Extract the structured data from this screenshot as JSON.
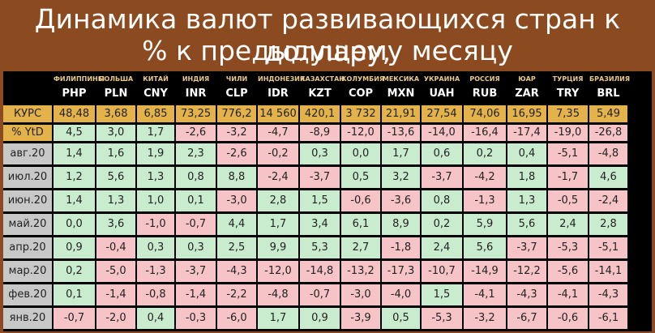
{
  "title_line1": "Динамика валют развивающихся стран к доллару,",
  "title_line2": "% к предыдущему месяцу",
  "chart_data": {
    "type": "table",
    "title": "Динамика валют развивающихся стран к доллару, % к предыдущему месяцу",
    "countries": [
      "ФИЛИППИНЫ",
      "ПОЛЬША",
      "КИТАЙ",
      "ИНДИЯ",
      "ЧИЛИ",
      "ИНДОНЕЗИЯ",
      "КАЗАХСТАН",
      "КОЛУМБИЯ",
      "МЕКСИКА",
      "УКРАИНА",
      "РОССИЯ",
      "ЮАР",
      "ТУРЦИЯ",
      "БРАЗИЛИЯ"
    ],
    "codes": [
      "PHP",
      "PLN",
      "CNY",
      "INR",
      "CLP",
      "IDR",
      "KZT",
      "COP",
      "MXN",
      "UAH",
      "RUB",
      "ZAR",
      "TRY",
      "BRL"
    ],
    "rate_label": "КУРС",
    "rates": [
      "48,48",
      "3,68",
      "6,85",
      "73,25",
      "776,2",
      "14 560",
      "420,1",
      "3 732",
      "21,91",
      "27,54",
      "74,06",
      "16,95",
      "7,35",
      "5,49"
    ],
    "ytd_label": "% YtD",
    "ytd": [
      4.5,
      3.0,
      1.7,
      -2.6,
      -3.2,
      -4.7,
      -8.9,
      -12.0,
      -13.6,
      -14.0,
      -16.4,
      -17.4,
      -19.0,
      -26.8
    ],
    "rows": [
      {
        "label": "авг.20",
        "values": [
          1.4,
          1.6,
          1.9,
          2.3,
          -2.6,
          -0.2,
          0.3,
          0.0,
          1.7,
          0.6,
          0.2,
          0.4,
          -5.1,
          -4.8
        ]
      },
      {
        "label": "июл.20",
        "values": [
          1.2,
          5.6,
          1.3,
          0.8,
          8.8,
          -2.4,
          -3.7,
          0.5,
          3.2,
          -3.7,
          -4.2,
          1.8,
          -1.7,
          4.6
        ]
      },
      {
        "label": "июн.20",
        "values": [
          1.4,
          1.3,
          1.0,
          0.1,
          -3.0,
          2.8,
          1.5,
          -0.6,
          -3.6,
          0.8,
          -1.3,
          1.3,
          -0.5,
          -2.4
        ]
      },
      {
        "label": "май.20",
        "values": [
          0.0,
          3.6,
          -1.0,
          -0.7,
          4.4,
          1.7,
          3.4,
          6.1,
          8.9,
          0.2,
          5.9,
          5.6,
          2.4,
          2.8
        ]
      },
      {
        "label": "апр.20",
        "values": [
          0.9,
          -0.4,
          0.3,
          0.3,
          2.5,
          9.9,
          5.3,
          2.7,
          -1.8,
          2.4,
          5.6,
          -3.7,
          -5.3,
          -5.1
        ]
      },
      {
        "label": "мар.20",
        "values": [
          0.2,
          -5.0,
          -1.3,
          -3.7,
          -4.3,
          -12.0,
          -14.8,
          -13.2,
          -17.3,
          -10.7,
          -14.9,
          -12.2,
          -5.6,
          -14.1
        ]
      },
      {
        "label": "фев.20",
        "values": [
          0.1,
          -1.4,
          -0.8,
          -1.4,
          -2.2,
          -4.8,
          -0.7,
          -3.0,
          -4.0,
          1.5,
          -4.1,
          -4.3,
          -4.1,
          -4.3
        ]
      },
      {
        "label": "янв.20",
        "values": [
          -0.7,
          -2.0,
          0.4,
          -0.3,
          -6.0,
          1.7,
          0.9,
          -3.9,
          0.5,
          -5.3,
          -3.2,
          -6.7,
          -0.6,
          -6.1
        ]
      }
    ]
  },
  "colors": {
    "background": "#8b4a1f",
    "positive": "#c9eccf",
    "negative": "#f6c4c7",
    "rate_row": "#e4b24a",
    "month_label": "#c8c8c8"
  }
}
